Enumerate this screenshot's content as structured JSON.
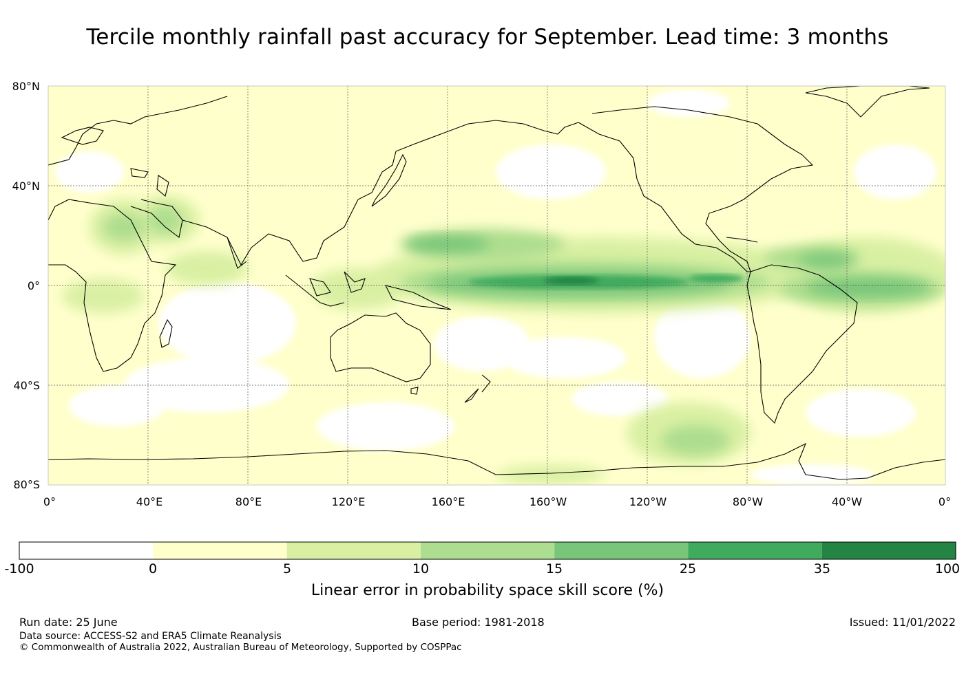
{
  "title": "Tercile monthly rainfall past accuracy for September. Lead time: 3 months",
  "map": {
    "lat_labels": [
      "80°N",
      "40°N",
      "0°",
      "40°S",
      "80°S"
    ],
    "lon_labels": [
      "0°",
      "40°E",
      "80°E",
      "120°E",
      "160°E",
      "160°W",
      "120°W",
      "80°W",
      "40°W",
      "0°"
    ],
    "lon_range": [
      0,
      360
    ],
    "lat_range": [
      -80,
      80
    ],
    "gridlines": true,
    "coastline_color": "#000000"
  },
  "colorbar": {
    "ticks": [
      "-100",
      "0",
      "5",
      "10",
      "15",
      "25",
      "35",
      "100"
    ],
    "colors": [
      "#ffffff",
      "#ffffcc",
      "#d9f0a3",
      "#addd8e",
      "#78c679",
      "#41ab5d",
      "#238443"
    ],
    "label": "Linear error in probability space skill score (%)"
  },
  "footer": {
    "run_date": "Run date: 25 June",
    "base_period": "Base period: 1981-2018",
    "issued": "Issued: 11/01/2022",
    "data_source": "Data source: ACCESS-S2 and ERA5 Climate Reanalysis",
    "copyright": "© Commonwealth of Australia 2022, Australian Bureau of Meteorology, Supported by COSPPac"
  }
}
